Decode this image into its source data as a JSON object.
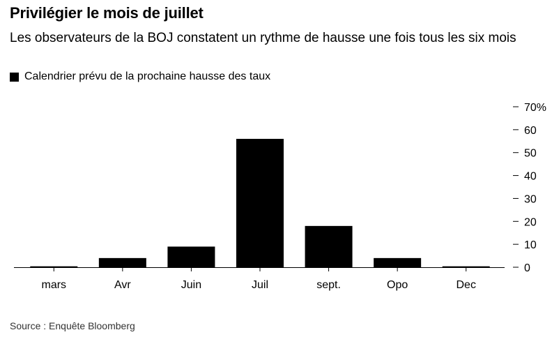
{
  "title": "Privilégier le mois de juillet",
  "subtitle": "Les observateurs de la BOJ constatent un rythme de hausse une fois tous les six mois",
  "source": "Source : Enquête Bloomberg",
  "chart_data": {
    "type": "bar",
    "categories": [
      "mars",
      "Avr",
      "Juin",
      "Juil",
      "sept.",
      "Opo",
      "Dec"
    ],
    "series": [
      {
        "name": "Calendrier prévu de la prochaine hausse des taux",
        "values": [
          0.4,
          4,
          9,
          56,
          18,
          4,
          0.4
        ],
        "color": "#000000"
      }
    ],
    "ylim": [
      0,
      70
    ],
    "yticks": [
      0,
      10,
      20,
      30,
      40,
      50,
      60,
      70
    ],
    "ytick_labels": [
      "0",
      "10",
      "20",
      "30",
      "40",
      "50",
      "60",
      "70%"
    ],
    "legend_position": "top-left",
    "grid": false
  }
}
